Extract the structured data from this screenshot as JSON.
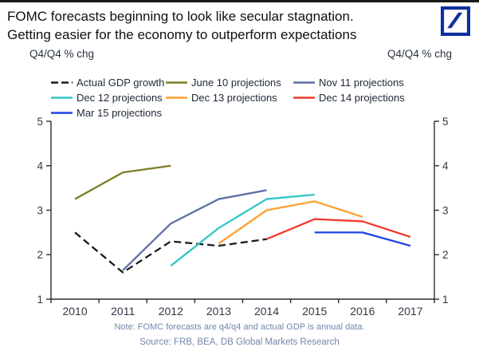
{
  "page": {
    "title_line1": "FOMC forecasts beginning to look like secular stagnation.",
    "title_line2": "Getting easier for the economy to outperform expectations",
    "unit_label_left": "Q4/Q4 % chg",
    "unit_label_right": "Q4/Q4 % chg",
    "note": "Note: FOMC forecasts are q4/q4 and actual GDP is annual data.",
    "source": "Source: FRB, BEA, DB Global Markets Research",
    "logo": "deutsche-bank-logo",
    "logo_color": "#0e2f9e"
  },
  "chart_data": {
    "type": "line",
    "title": "FOMC GDP growth forecasts vs actual GDP growth",
    "xlabel": "",
    "ylabel": "Q4/Q4 % chg",
    "x": [
      2010,
      2011,
      2012,
      2013,
      2014,
      2015,
      2016,
      2017
    ],
    "ylim": [
      1,
      5
    ],
    "y_ticks": [
      1,
      2,
      3,
      4,
      5
    ],
    "grid": false,
    "legend_position": "top-left",
    "axis_color": "#2e2e2e",
    "tick_label_color": "#303845",
    "series": [
      {
        "name": "Actual GDP growth",
        "color": "#1a1a1a",
        "dashed": true,
        "points": [
          [
            2010,
            2.5
          ],
          [
            2011,
            1.6
          ],
          [
            2012,
            2.3
          ],
          [
            2013,
            2.2
          ],
          [
            2014,
            2.35
          ]
        ]
      },
      {
        "name": "June 10 projections",
        "color": "#7e7d26",
        "dashed": false,
        "points": [
          [
            2010,
            3.25
          ],
          [
            2011,
            3.85
          ],
          [
            2012,
            4.0
          ]
        ]
      },
      {
        "name": "Nov 11 projections",
        "color": "#5d6fa6",
        "dashed": false,
        "points": [
          [
            2011,
            1.65
          ],
          [
            2012,
            2.7
          ],
          [
            2013,
            3.25
          ],
          [
            2014,
            3.45
          ]
        ]
      },
      {
        "name": "Dec 12 projections",
        "color": "#31c7c5",
        "dashed": false,
        "points": [
          [
            2012,
            1.75
          ],
          [
            2013,
            2.6
          ],
          [
            2014,
            3.25
          ],
          [
            2015,
            3.35
          ]
        ]
      },
      {
        "name": "Dec 13 projections",
        "color": "#fca22e",
        "dashed": false,
        "points": [
          [
            2013,
            2.25
          ],
          [
            2014,
            3.0
          ],
          [
            2015,
            3.2
          ],
          [
            2016,
            2.85
          ]
        ]
      },
      {
        "name": "Dec 14 projections",
        "color": "#f2392c",
        "dashed": false,
        "points": [
          [
            2014,
            2.35
          ],
          [
            2015,
            2.8
          ],
          [
            2016,
            2.75
          ],
          [
            2017,
            2.4
          ]
        ]
      },
      {
        "name": "Mar 15 projections",
        "color": "#2144e8",
        "dashed": false,
        "points": [
          [
            2015,
            2.5
          ],
          [
            2016,
            2.5
          ],
          [
            2017,
            2.2
          ]
        ]
      }
    ]
  }
}
